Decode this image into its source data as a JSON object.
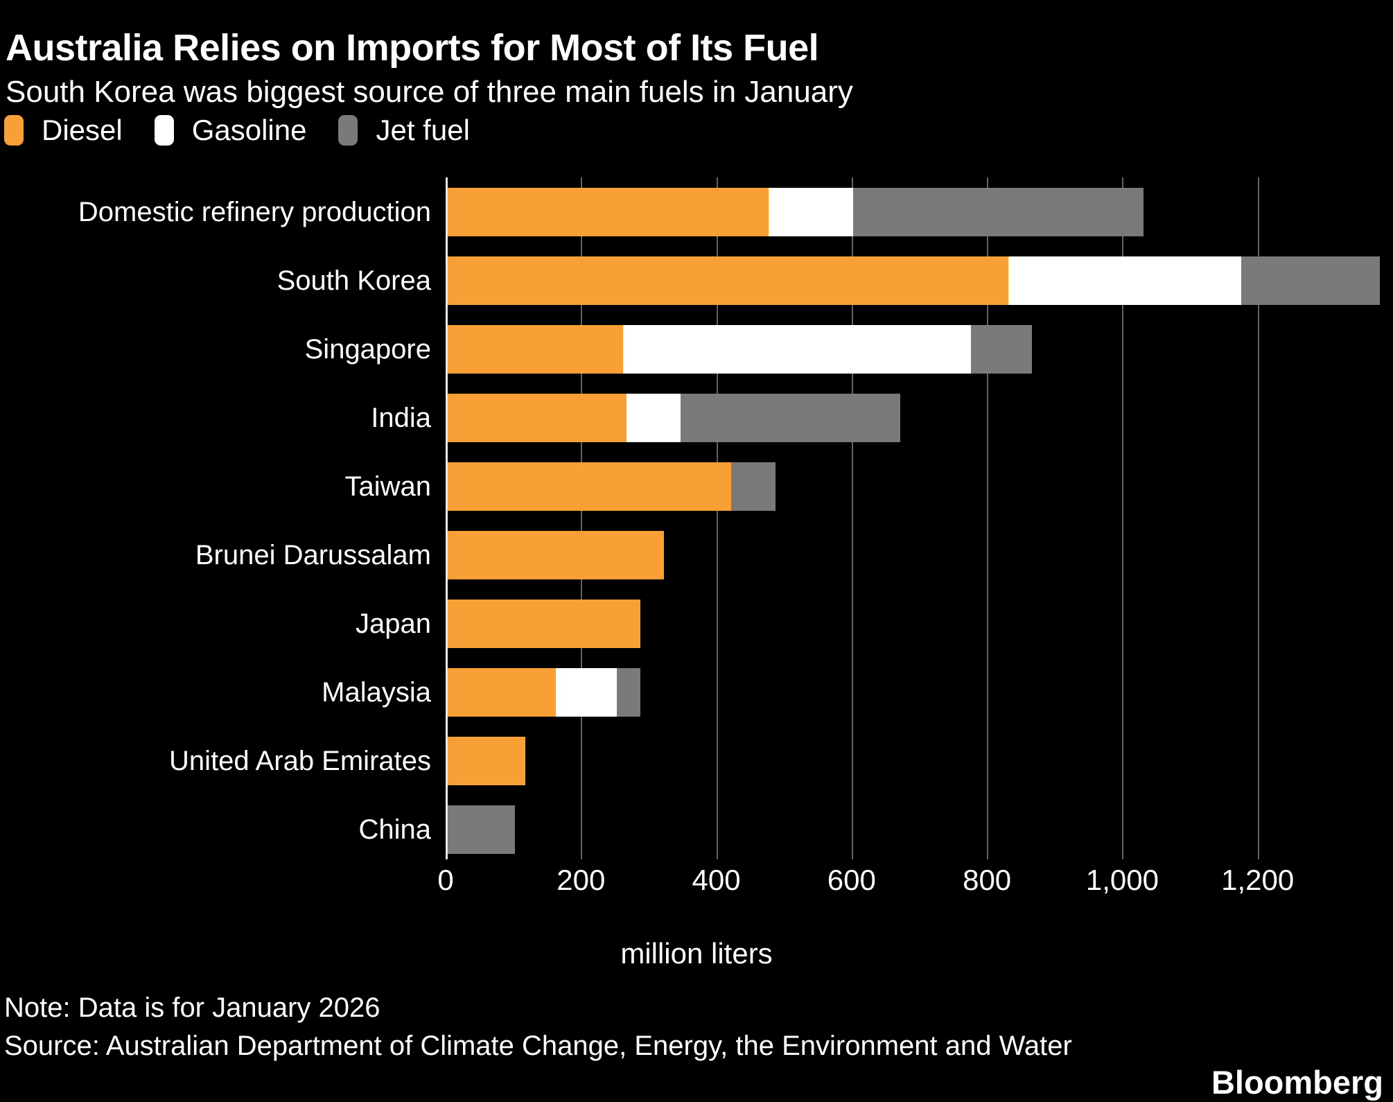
{
  "header": {
    "title": "Australia Relies on Imports for Most of Its Fuel",
    "subtitle": "South Korea was biggest source of three main fuels in January"
  },
  "chart_data": {
    "type": "bar",
    "orientation": "horizontal",
    "stacked": true,
    "title": "Australia Relies on Imports for Most of Its Fuel",
    "subtitle": "South Korea was biggest source of three main fuels in January",
    "categories": [
      "Domestic refinery production",
      "South Korea",
      "Singapore",
      "India",
      "Taiwan",
      "Brunei Darussalam",
      "Japan",
      "Malaysia",
      "United Arab Emirates",
      "China"
    ],
    "series": [
      {
        "name": "Diesel",
        "color": "#F89F35",
        "values": [
          475,
          830,
          260,
          265,
          420,
          320,
          285,
          160,
          115,
          0
        ]
      },
      {
        "name": "Gasoline",
        "color": "#FFFFFF",
        "values": [
          125,
          345,
          515,
          80,
          0,
          0,
          0,
          90,
          0,
          0
        ]
      },
      {
        "name": "Jet fuel",
        "color": "#7A7A7A",
        "values": [
          430,
          205,
          90,
          325,
          65,
          0,
          0,
          35,
          0,
          100
        ]
      }
    ],
    "totals": [
      1030,
      1380,
      865,
      670,
      485,
      320,
      285,
      285,
      115,
      100
    ],
    "xlabel": "million liters",
    "xlim": [
      0,
      1400
    ],
    "x_ticks": [
      {
        "value": 0,
        "label": "0"
      },
      {
        "value": 200,
        "label": "200"
      },
      {
        "value": 400,
        "label": "400"
      },
      {
        "value": 600,
        "label": "600"
      },
      {
        "value": 800,
        "label": "800"
      },
      {
        "value": 1000,
        "label": "1,000"
      },
      {
        "value": 1200,
        "label": "1,200"
      }
    ],
    "grid": true,
    "legend_position": "top"
  },
  "footer": {
    "note": "Note: Data is for January 2026",
    "source": "Source: Australian Department of Climate Change, Energy, the Environment and Water",
    "brand": "Bloomberg"
  },
  "colors": {
    "background": "#000000",
    "text": "#FFFFFF",
    "gridline": "#636363",
    "axis_line": "#E9E9E9"
  }
}
